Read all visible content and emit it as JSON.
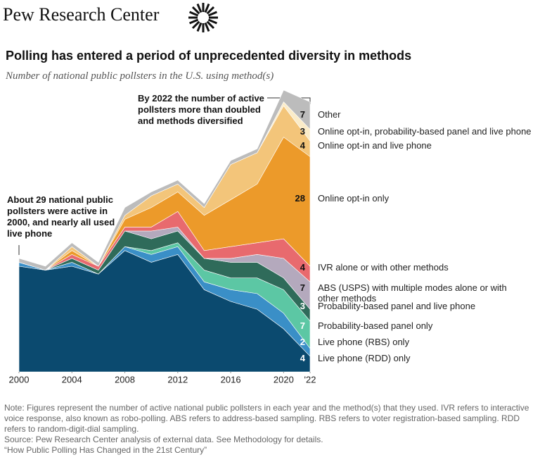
{
  "header": {
    "brand": "Pew Research Center"
  },
  "chart_data": {
    "type": "area",
    "stacked": true,
    "title": "Polling has entered a period of unprecedented diversity in methods",
    "subtitle": "Number of national public pollsters in the U.S. using method(s)",
    "annotations": [
      "About 29 national public pollsters were active in 2000, and nearly all used live phone",
      "By 2022 the number of active pollsters more than doubled and methods diversified"
    ],
    "x": [
      2000,
      2002,
      2004,
      2006,
      2008,
      2010,
      2012,
      2014,
      2016,
      2018,
      2020,
      2022
    ],
    "xlim": [
      2000,
      2022
    ],
    "xticks": [
      2000,
      2004,
      2008,
      2012,
      2016,
      2020,
      {
        "value": 2022,
        "label": "'22"
      }
    ],
    "ylim": [
      0,
      72
    ],
    "series": [
      {
        "name": "Live phone (RDD) only",
        "color": "#0b4a6f",
        "values": [
          27,
          26,
          27,
          25,
          31,
          28,
          30,
          21,
          18,
          16,
          11,
          4
        ]
      },
      {
        "name": "Live phone (RBS) only",
        "color": "#3a8fc7",
        "values": [
          1,
          0,
          1,
          0,
          1,
          2,
          2,
          2,
          3,
          4,
          4,
          2
        ]
      },
      {
        "name": "Probability-based panel only",
        "color": "#5cc7a4",
        "values": [
          0,
          0,
          0,
          0,
          0,
          1,
          1,
          3,
          3,
          4,
          6,
          7
        ]
      },
      {
        "name": "Probability-based panel and live phone",
        "color": "#2f6b5a",
        "values": [
          0,
          0,
          1,
          1,
          4,
          3,
          3,
          3,
          4,
          4,
          3,
          3
        ]
      },
      {
        "name": "ABS (USPS) with multiple modes alone or with other methods",
        "color": "#b4a9bd",
        "values": [
          0,
          0,
          0,
          0,
          0,
          2,
          1,
          0,
          1,
          2,
          5,
          7
        ]
      },
      {
        "name": "IVR alone or with other methods",
        "color": "#e86a6e",
        "values": [
          0,
          0,
          1,
          1,
          1,
          1,
          4,
          2,
          3,
          3,
          5,
          4
        ]
      },
      {
        "name": "Online opt-in only",
        "color": "#ec9a2a",
        "values": [
          0,
          0,
          1,
          0,
          2,
          5,
          5,
          9,
          12,
          15,
          26,
          28
        ]
      },
      {
        "name": "Online opt-in and live phone",
        "color": "#f3c57a",
        "values": [
          0,
          0,
          1,
          0,
          1,
          3,
          2,
          2,
          9,
          8,
          8,
          4
        ]
      },
      {
        "name": "Online opt-in, probability-based panel and live phone",
        "color": "#fbecc8",
        "values": [
          0,
          0,
          0,
          0,
          0,
          0,
          0,
          0,
          0,
          0,
          1,
          3
        ]
      },
      {
        "name": "Other",
        "color": "#bcbcbc",
        "values": [
          1,
          1,
          1,
          1,
          2,
          1,
          1,
          1,
          1,
          1,
          3,
          7
        ]
      }
    ],
    "notes": [
      "Note: Figures represent the number of active national public pollsters in each year and the method(s) that they used. IVR refers to interactive voice response, also known as robo-polling. ABS refers to address-based sampling. RBS refers to voter registration-based sampling. RDD refers to random-digit-dial sampling.",
      "Source: Pew Research Center analysis of external data. See Methodology for details.",
      "“How Public Polling Has Changed in the 21st Century”"
    ]
  }
}
